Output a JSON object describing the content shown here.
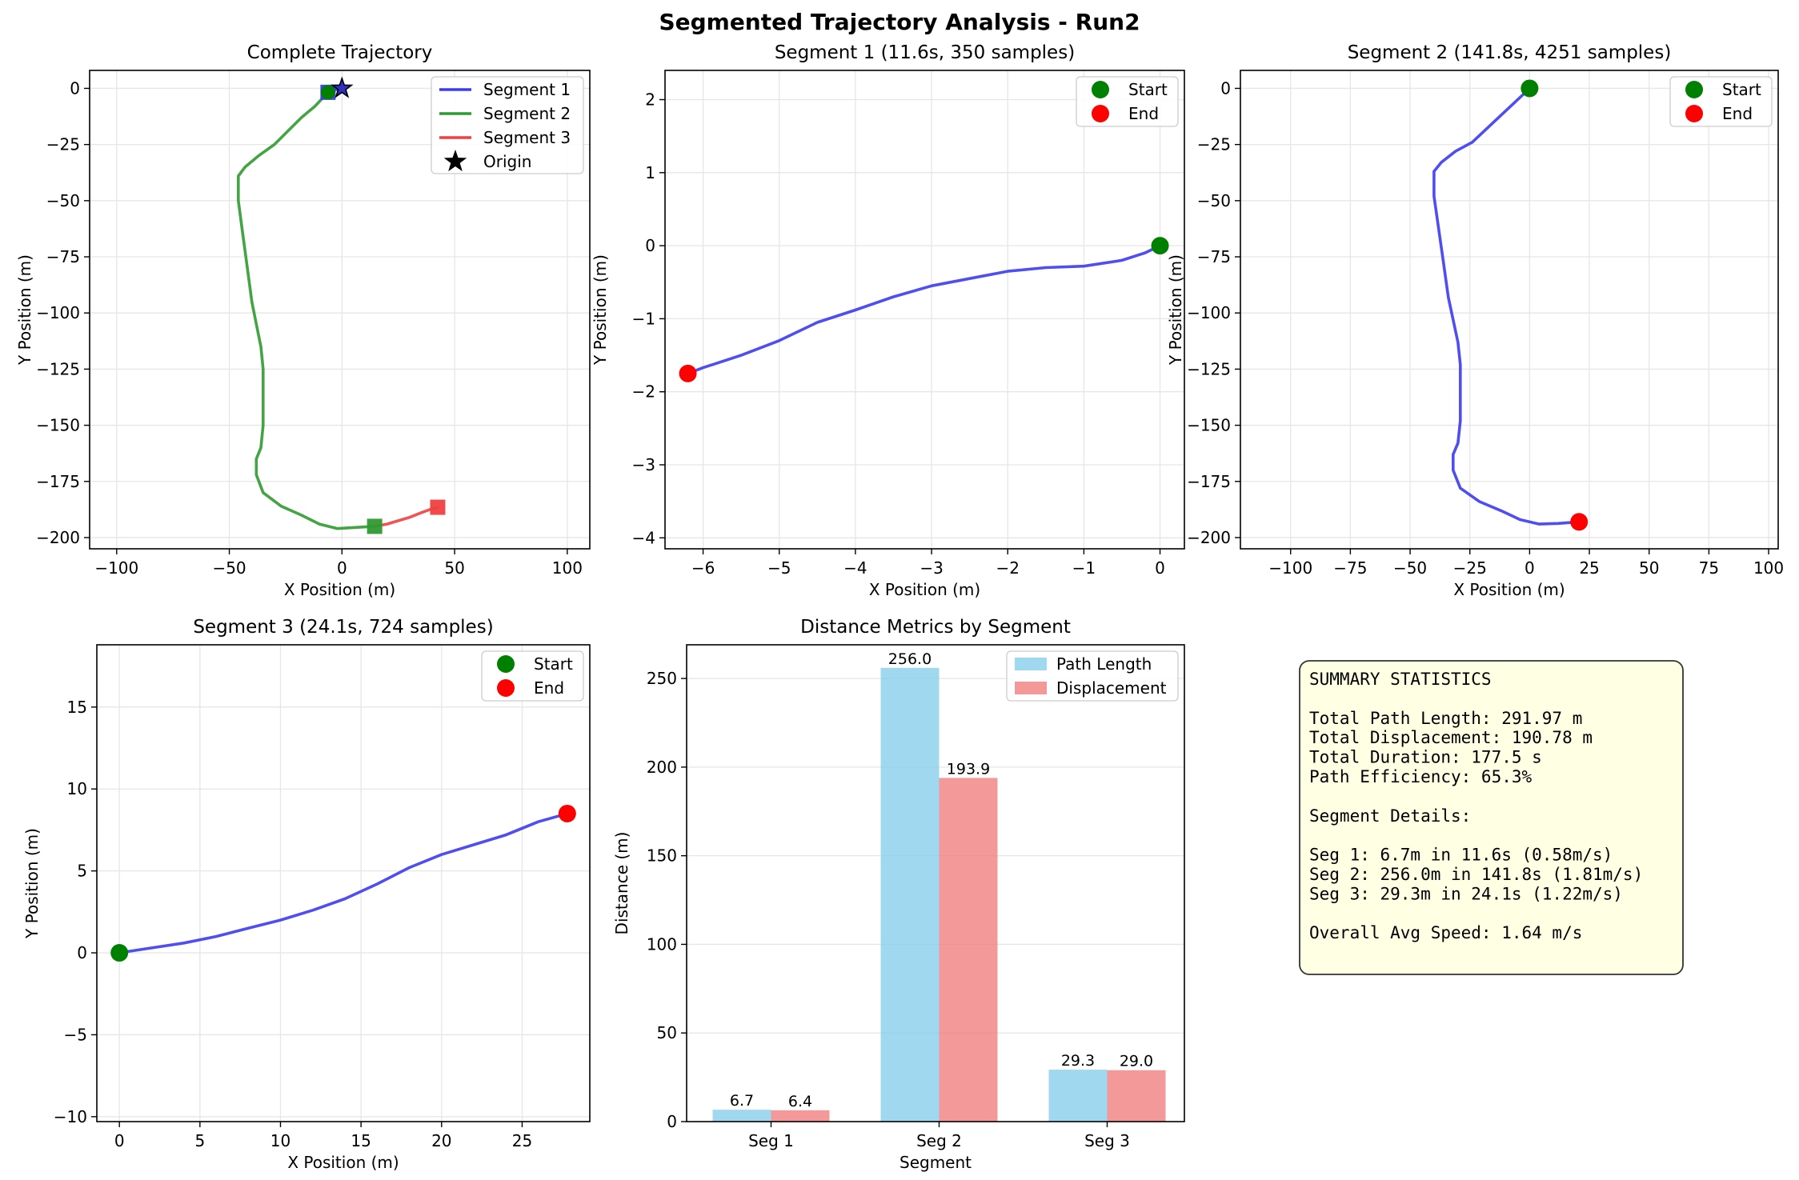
{
  "figure": {
    "title": "Segmented Trajectory Analysis - Run2"
  },
  "colors": {
    "seg1": "#3b3bf0",
    "seg2": "#2f9a2f",
    "seg3": "#f04040",
    "start": "#008000",
    "end": "#ff0000",
    "path_length": "#87ceeb",
    "displacement": "#f08080",
    "summary_bg": "#ffffe3"
  },
  "chart_data": [
    {
      "id": "complete",
      "type": "line",
      "title": "Complete Trajectory",
      "xlabel": "X Position (m)",
      "ylabel": "Y Position (m)",
      "xlim": [
        -112,
        110
      ],
      "ylim": [
        -205,
        8
      ],
      "xticks": [
        -100,
        -50,
        0,
        50,
        100
      ],
      "yticks": [
        0,
        -25,
        -50,
        -75,
        -100,
        -125,
        -150,
        -175,
        -200
      ],
      "grid": true,
      "legend": "top-right",
      "legend_entries": [
        "Segment 1",
        "Segment 2",
        "Segment 3",
        "Origin"
      ],
      "series": [
        {
          "name": "Segment 1",
          "x": [
            0,
            -1.5,
            -3,
            -4.5,
            -6.2
          ],
          "y": [
            0,
            -0.3,
            -0.7,
            -1.2,
            -1.75
          ]
        },
        {
          "name": "Segment 2",
          "x": [
            -6.2,
            -12,
            -18,
            -25,
            -30,
            -37,
            -43,
            -46,
            -46,
            -44,
            -42,
            -40,
            -38,
            -36,
            -35,
            -35,
            -35,
            -36,
            -38,
            -38,
            -35,
            -27,
            -18,
            -10,
            -2,
            6,
            14.5
          ],
          "y": [
            -1.75,
            -8,
            -13,
            -20,
            -25,
            -30,
            -35,
            -39,
            -50,
            -65,
            -80,
            -95,
            -105,
            -115,
            -125,
            -135,
            -150,
            -160,
            -165,
            -172,
            -180,
            -186,
            -190,
            -194,
            -196,
            -195.5,
            -195
          ]
        },
        {
          "name": "Segment 3",
          "x": [
            14.5,
            20,
            25,
            30,
            35,
            39,
            42.5
          ],
          "y": [
            -195,
            -194,
            -192.5,
            -191,
            -189,
            -187.5,
            -186.5
          ]
        }
      ],
      "markers": [
        {
          "type": "origin",
          "x": 0,
          "y": 0
        },
        {
          "type": "square",
          "series": "Segment 1",
          "x": -6.2,
          "y": -1.75
        },
        {
          "type": "square",
          "series": "Segment 2",
          "x": 14.5,
          "y": -195
        },
        {
          "type": "square",
          "series": "Segment 3",
          "x": 42.5,
          "y": -186.5
        }
      ]
    },
    {
      "id": "seg1",
      "type": "line",
      "title": "Segment 1 (11.6s, 350 samples)",
      "xlabel": "X Position (m)",
      "ylabel": "Y Position (m)",
      "xlim": [
        -6.5,
        0.32
      ],
      "ylim": [
        -4.15,
        2.4
      ],
      "xticks": [
        -6,
        -5,
        -4,
        -3,
        -2,
        -1,
        0
      ],
      "yticks": [
        2,
        1,
        0,
        -1,
        -2,
        -3,
        -4
      ],
      "grid": true,
      "legend": "top-right",
      "legend_entries": [
        "Start",
        "End"
      ],
      "series": [
        {
          "x": [
            0,
            -0.2,
            -0.5,
            -1.0,
            -1.5,
            -2.0,
            -2.5,
            -3.0,
            -3.5,
            -4.0,
            -4.5,
            -5.0,
            -5.5,
            -6.0,
            -6.2
          ],
          "y": [
            0,
            -0.1,
            -0.2,
            -0.28,
            -0.3,
            -0.35,
            -0.45,
            -0.55,
            -0.7,
            -0.88,
            -1.05,
            -1.3,
            -1.5,
            -1.67,
            -1.75
          ]
        }
      ],
      "start": [
        0,
        0
      ],
      "end": [
        -6.2,
        -1.75
      ]
    },
    {
      "id": "seg2",
      "type": "line",
      "title": "Segment 2 (141.8s, 4251 samples)",
      "xlabel": "X Position (m)",
      "ylabel": "Y Position (m)",
      "xlim": [
        -121,
        104
      ],
      "ylim": [
        -205,
        8
      ],
      "xticks": [
        -100,
        -75,
        -50,
        -25,
        0,
        25,
        50,
        75,
        100
      ],
      "yticks": [
        0,
        -25,
        -50,
        -75,
        -100,
        -125,
        -150,
        -175,
        -200
      ],
      "grid": true,
      "legend": "top-right",
      "legend_entries": [
        "Start",
        "End"
      ],
      "series": [
        {
          "x": [
            0,
            -5,
            -12,
            -19,
            -24,
            -31,
            -37,
            -40,
            -40,
            -38,
            -36,
            -34,
            -32,
            -30,
            -29,
            -29,
            -29,
            -30,
            -32,
            -32,
            -29,
            -21,
            -12,
            -4,
            4,
            12,
            20.7
          ],
          "y": [
            0,
            -5,
            -12,
            -19,
            -24,
            -28,
            -33,
            -37,
            -48,
            -63,
            -78,
            -93,
            -103,
            -113,
            -123,
            -133,
            -148,
            -158,
            -163,
            -170,
            -178,
            -184,
            -188,
            -192,
            -194,
            -193.7,
            -193
          ]
        }
      ],
      "start": [
        0,
        0
      ],
      "end": [
        20.7,
        -193
      ]
    },
    {
      "id": "seg3",
      "type": "line",
      "title": "Segment 3 (24.1s, 724 samples)",
      "xlabel": "X Position (m)",
      "ylabel": "Y Position (m)",
      "xlim": [
        -1.4,
        29.2
      ],
      "ylim": [
        -10.3,
        18.8
      ],
      "xticks": [
        0,
        5,
        10,
        15,
        20,
        25
      ],
      "yticks": [
        15,
        10,
        5,
        0,
        -5,
        -10
      ],
      "grid": true,
      "legend": "top-right",
      "legend_entries": [
        "Start",
        "End"
      ],
      "series": [
        {
          "x": [
            0,
            2,
            4,
            6,
            8,
            10,
            12,
            14,
            16,
            18,
            20,
            22,
            24,
            26,
            27.8
          ],
          "y": [
            0,
            0.3,
            0.6,
            1.0,
            1.5,
            2.0,
            2.6,
            3.3,
            4.2,
            5.2,
            6.0,
            6.6,
            7.2,
            8.0,
            8.5
          ]
        }
      ],
      "start": [
        0,
        0
      ],
      "end": [
        27.8,
        8.5
      ]
    },
    {
      "id": "metrics",
      "type": "bar",
      "title": "Distance Metrics by Segment",
      "xlabel": "Segment",
      "ylabel": "Distance (m)",
      "ylim": [
        0,
        269
      ],
      "yticks": [
        0,
        50,
        100,
        150,
        200,
        250
      ],
      "grid": true,
      "legend": "top-right",
      "categories": [
        "Seg 1",
        "Seg 2",
        "Seg 3"
      ],
      "series": [
        {
          "name": "Path Length",
          "values": [
            6.7,
            256.0,
            29.3
          ],
          "labels": [
            "6.7",
            "256.0",
            "29.3"
          ]
        },
        {
          "name": "Displacement",
          "values": [
            6.4,
            193.9,
            29.0
          ],
          "labels": [
            "6.4",
            "193.9",
            "29.0"
          ]
        }
      ]
    }
  ],
  "summary": {
    "lines": [
      "SUMMARY STATISTICS",
      "",
      "Total Path Length: 291.97 m",
      "Total Displacement: 190.78 m",
      "Total Duration: 177.5 s",
      "Path Efficiency: 65.3%",
      "",
      "Segment Details:",
      "",
      "Seg 1: 6.7m in 11.6s (0.58m/s)",
      "Seg 2: 256.0m in 141.8s (1.81m/s)",
      "Seg 3: 29.3m in 24.1s (1.22m/s)",
      "",
      "Overall Avg Speed: 1.64 m/s"
    ]
  }
}
